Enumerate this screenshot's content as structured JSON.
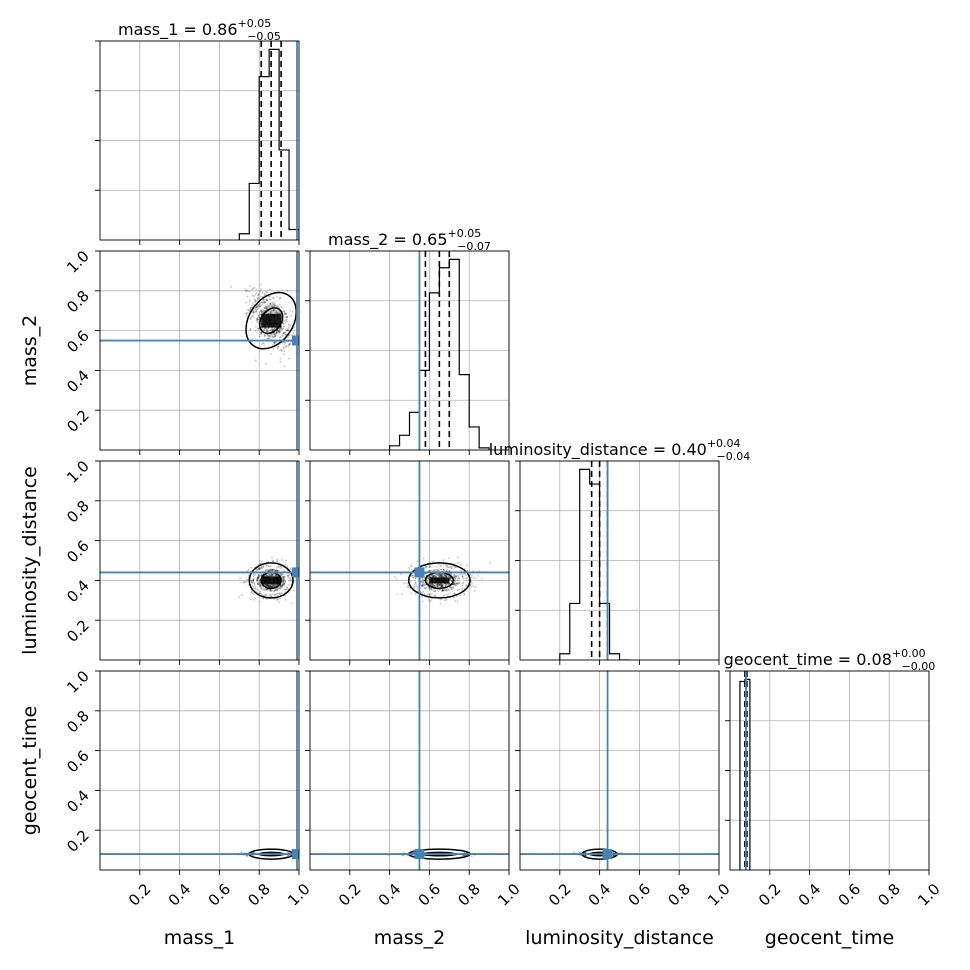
{
  "chart_data": {
    "type": "corner",
    "parameters": [
      "mass_1",
      "mass_2",
      "luminosity_distance",
      "geocent_time"
    ],
    "range": [
      0,
      1
    ],
    "ticks": [
      "0.2",
      "0.4",
      "0.6",
      "0.8",
      "1.0"
    ],
    "tick_values": [
      0.2,
      0.4,
      0.6,
      0.8,
      1.0
    ],
    "truths": [
      0.99,
      0.55,
      0.44,
      0.08
    ],
    "truth_color": "#4682b4",
    "grid": true,
    "summaries": [
      {
        "name": "mass_1",
        "median": "0.86",
        "plus": "+0.05",
        "minus": "−0.05",
        "q": [
          0.81,
          0.86,
          0.91
        ]
      },
      {
        "name": "mass_2",
        "median": "0.65",
        "plus": "+0.05",
        "minus": "−0.07",
        "q": [
          0.58,
          0.65,
          0.7
        ]
      },
      {
        "name": "luminosity_distance",
        "median": "0.40",
        "plus": "+0.04",
        "minus": "−0.04",
        "q": [
          0.36,
          0.4,
          0.44
        ]
      },
      {
        "name": "geocent_time",
        "median": "0.08",
        "plus": "+0.00",
        "minus": "−0.00",
        "q": [
          0.075,
          0.08,
          0.085
        ]
      }
    ],
    "histograms": [
      {
        "edges": [
          0.7,
          0.75,
          0.8,
          0.85,
          0.9,
          0.95,
          1.0
        ],
        "counts": [
          0.03,
          0.27,
          0.78,
          0.91,
          0.43,
          0.05
        ]
      },
      {
        "edges": [
          0.4,
          0.45,
          0.5,
          0.55,
          0.6,
          0.65,
          0.7,
          0.75,
          0.8,
          0.85,
          0.9
        ],
        "counts": [
          0.02,
          0.07,
          0.18,
          0.38,
          0.75,
          0.87,
          0.91,
          0.36,
          0.11,
          0.01
        ]
      },
      {
        "edges": [
          0.2,
          0.25,
          0.3,
          0.35,
          0.4,
          0.45,
          0.5,
          0.55
        ],
        "counts": [
          0.03,
          0.27,
          0.91,
          0.84,
          0.27,
          0.03,
          0.0
        ]
      },
      {
        "edges": [
          0.05,
          0.075,
          0.1
        ],
        "counts": [
          0.9,
          0.91
        ]
      }
    ],
    "posterior_2d": [
      {
        "x": "mass_1",
        "y": "mass_2",
        "cx": 0.86,
        "cy": 0.65,
        "sx": 0.05,
        "sy": 0.07,
        "rho": -0.5
      },
      {
        "x": "mass_1",
        "y": "luminosity_distance",
        "cx": 0.86,
        "cy": 0.4,
        "sx": 0.05,
        "sy": 0.04,
        "rho": 0.0
      },
      {
        "x": "mass_2",
        "y": "luminosity_distance",
        "cx": 0.65,
        "cy": 0.4,
        "sx": 0.07,
        "sy": 0.04,
        "rho": 0.0
      },
      {
        "x": "mass_1",
        "y": "geocent_time",
        "cx": 0.86,
        "cy": 0.08,
        "sx": 0.05,
        "sy": 0.004,
        "rho": 0.0
      },
      {
        "x": "mass_2",
        "y": "geocent_time",
        "cx": 0.65,
        "cy": 0.08,
        "sx": 0.07,
        "sy": 0.004,
        "rho": 0.0
      },
      {
        "x": "luminosity_distance",
        "y": "geocent_time",
        "cx": 0.4,
        "cy": 0.08,
        "sx": 0.04,
        "sy": 0.004,
        "rho": 0.0
      }
    ]
  }
}
